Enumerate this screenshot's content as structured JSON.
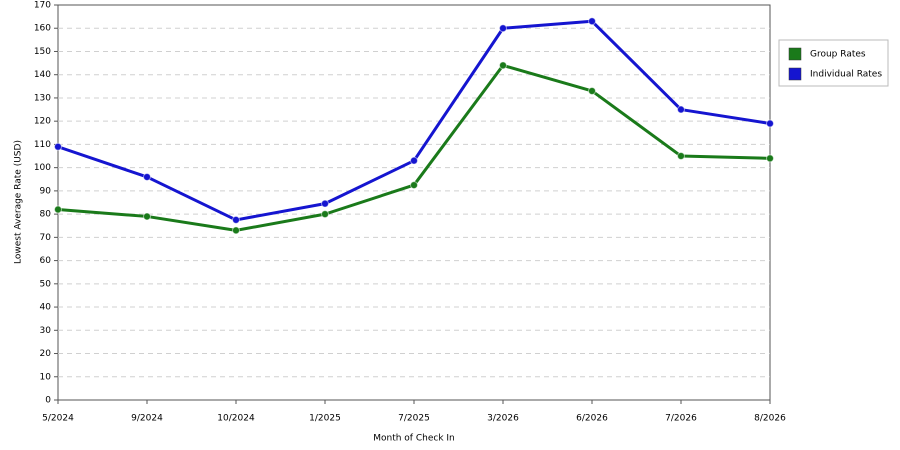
{
  "chart_data": {
    "type": "line",
    "x_label": "Month of Check In",
    "y_label": "Lowest Average Rate (USD)",
    "categories": [
      "5/2024",
      "9/2024",
      "10/2024",
      "1/2025",
      "7/2025",
      "3/2026",
      "6/2026",
      "7/2026",
      "8/2026"
    ],
    "series": [
      {
        "name": "Group Rates",
        "color": "#1a7a1a",
        "values": [
          82,
          79,
          73,
          80,
          92.5,
          144,
          133,
          105,
          104
        ]
      },
      {
        "name": "Individual Rates",
        "color": "#1515d0",
        "values": [
          109,
          96,
          77.5,
          84.5,
          103,
          160,
          163,
          125,
          119
        ]
      }
    ],
    "ylim": [
      0,
      170
    ],
    "yticks": [
      0,
      10,
      20,
      30,
      40,
      50,
      60,
      70,
      80,
      90,
      100,
      110,
      120,
      130,
      140,
      150,
      160,
      170
    ],
    "grid": true,
    "legend": "right"
  }
}
